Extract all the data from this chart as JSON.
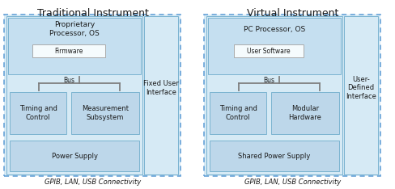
{
  "title_left": "Traditional Instrument",
  "title_right": "Virtual Instrument",
  "bg_color": "#ffffff",
  "light_blue": "#d6eaf5",
  "inner_blue": "#c5dff0",
  "box_blue": "#bdd7ea",
  "white_box": "#f5fbfd",
  "dashed_border": "#5b9bd5",
  "solid_border": "#7ab3d0",
  "gray_line": "#7f7f7f",
  "text_color": "#1a1a1a",
  "bottom_text_left": "GPIB, LAN, USB Connectivity",
  "bottom_text_right": "GPIB, LAN, USB Connectivity"
}
